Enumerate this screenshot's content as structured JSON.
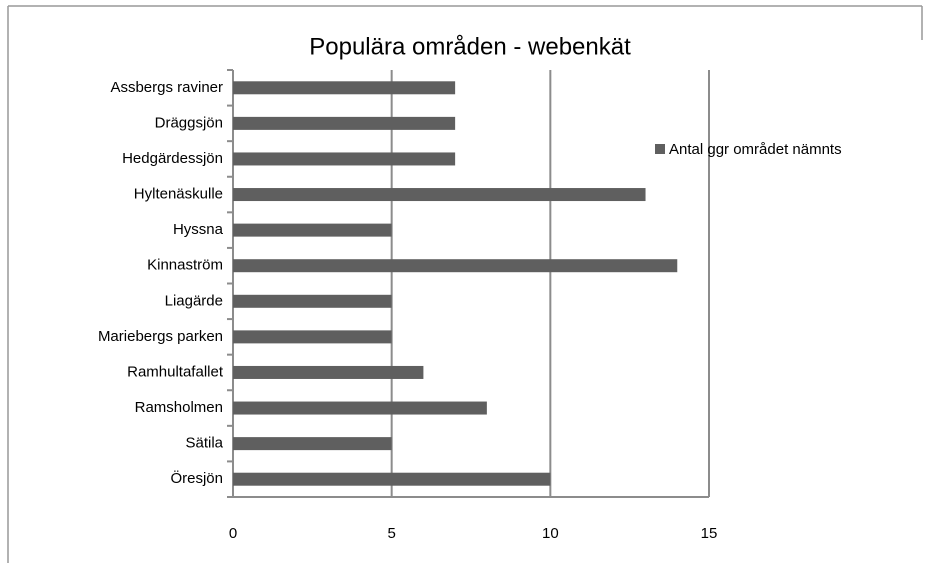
{
  "chart_data": {
    "type": "bar",
    "orientation": "horizontal",
    "title": "Populära områden - webenkät",
    "categories": [
      "Assbergs raviner",
      "Dräggsjön",
      "Hedgärdessjön",
      "Hyltenäskulle",
      "Hyssna",
      "Kinnaström",
      "Liagärde",
      "Mariebergs parken",
      "Ramhultafallet",
      "Ramsholmen",
      "Sätila",
      "Öresjön"
    ],
    "series": [
      {
        "name": "Antal ggr området nämnts",
        "color": "#5f5f5f",
        "values": [
          7,
          7,
          7,
          13,
          5,
          14,
          5,
          5,
          6,
          8,
          5,
          10
        ]
      }
    ],
    "xlim": [
      0,
      15
    ],
    "xticks": [
      0,
      5,
      10,
      15
    ],
    "grid": true,
    "legend": "right"
  }
}
